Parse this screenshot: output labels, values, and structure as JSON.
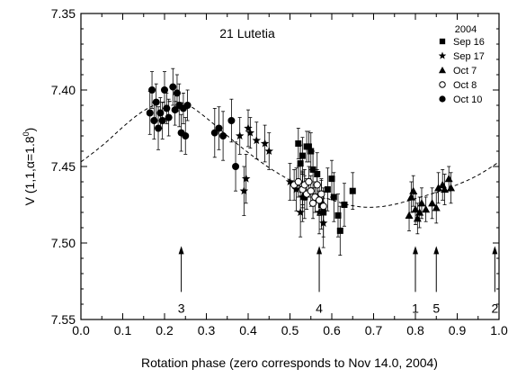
{
  "chart_data": {
    "type": "scatter",
    "title": "21 Lutetia",
    "xlabel": "Rotation phase (zero corresponds to Nov 14.0, 2004)",
    "ylabel_parts": {
      "main": "V (1,1,α=1.8",
      "sup": "0",
      "close": ")"
    },
    "xlim": [
      0.0,
      1.0
    ],
    "ylim": [
      7.35,
      7.55
    ],
    "y_inverted": true,
    "x_ticks": [
      "0.0",
      "0.1",
      "0.2",
      "0.3",
      "0.4",
      "0.5",
      "0.6",
      "0.7",
      "0.8",
      "0.9",
      "1.0"
    ],
    "x_tick_values": [
      0.0,
      0.1,
      0.2,
      0.3,
      0.4,
      0.5,
      0.6,
      0.7,
      0.8,
      0.9,
      1.0
    ],
    "y_ticks": [
      "7.35",
      "7.40",
      "7.45",
      "7.50",
      "7.55"
    ],
    "y_tick_values": [
      7.35,
      7.4,
      7.45,
      7.5,
      7.55
    ],
    "legend": {
      "title": "2004",
      "placement": "top-right",
      "entries": [
        {
          "label": "Sep 16",
          "marker": "square"
        },
        {
          "label": "Sep 17",
          "marker": "star"
        },
        {
          "label": "Oct  7",
          "marker": "triangle"
        },
        {
          "label": "Oct  8",
          "marker": "open-circle"
        },
        {
          "label": "Oct 10",
          "marker": "filled-circle"
        }
      ]
    },
    "fit_curve": [
      [
        0.0,
        7.447
      ],
      [
        0.05,
        7.437
      ],
      [
        0.1,
        7.424
      ],
      [
        0.15,
        7.413
      ],
      [
        0.2,
        7.407
      ],
      [
        0.25,
        7.408
      ],
      [
        0.3,
        7.418
      ],
      [
        0.35,
        7.43
      ],
      [
        0.4,
        7.441
      ],
      [
        0.45,
        7.451
      ],
      [
        0.5,
        7.459
      ],
      [
        0.55,
        7.467
      ],
      [
        0.6,
        7.472
      ],
      [
        0.65,
        7.476
      ],
      [
        0.7,
        7.477
      ],
      [
        0.75,
        7.475
      ],
      [
        0.8,
        7.471
      ],
      [
        0.85,
        7.467
      ],
      [
        0.9,
        7.462
      ],
      [
        0.95,
        7.456
      ],
      [
        1.0,
        7.447
      ]
    ],
    "series": [
      {
        "name": "Sep 16",
        "marker": "square",
        "points": [
          [
            0.52,
            7.435,
            0.01
          ],
          [
            0.525,
            7.448,
            0.012
          ],
          [
            0.53,
            7.465,
            0.012
          ],
          [
            0.535,
            7.47,
            0.014
          ],
          [
            0.54,
            7.437,
            0.01
          ],
          [
            0.55,
            7.44,
            0.012
          ],
          [
            0.555,
            7.452,
            0.012
          ],
          [
            0.565,
            7.455,
            0.014
          ],
          [
            0.575,
            7.475,
            0.016
          ],
          [
            0.58,
            7.48,
            0.016
          ],
          [
            0.59,
            7.465,
            0.014
          ],
          [
            0.6,
            7.458,
            0.012
          ],
          [
            0.605,
            7.47,
            0.016
          ],
          [
            0.615,
            7.482,
            0.014
          ],
          [
            0.62,
            7.492,
            0.016
          ],
          [
            0.63,
            7.475,
            0.014
          ],
          [
            0.65,
            7.466,
            0.012
          ],
          [
            0.53,
            7.443,
            0.012
          ],
          [
            0.545,
            7.437,
            0.01
          ]
        ]
      },
      {
        "name": "Sep 17",
        "marker": "star",
        "points": [
          [
            0.38,
            7.43,
            0.012
          ],
          [
            0.39,
            7.466,
            0.016
          ],
          [
            0.395,
            7.458,
            0.016
          ],
          [
            0.4,
            7.425,
            0.012
          ],
          [
            0.405,
            7.428,
            0.01
          ],
          [
            0.42,
            7.433,
            0.012
          ],
          [
            0.44,
            7.435,
            0.012
          ],
          [
            0.45,
            7.44,
            0.012
          ],
          [
            0.5,
            7.46,
            0.012
          ],
          [
            0.515,
            7.465,
            0.014
          ],
          [
            0.525,
            7.48,
            0.016
          ],
          [
            0.53,
            7.47,
            0.016
          ],
          [
            0.57,
            7.48,
            0.014
          ],
          [
            0.58,
            7.487,
            0.016
          ]
        ]
      },
      {
        "name": "Oct  7",
        "marker": "triangle",
        "points": [
          [
            0.785,
            7.482,
            0.01
          ],
          [
            0.79,
            7.47,
            0.01
          ],
          [
            0.795,
            7.466,
            0.01
          ],
          [
            0.8,
            7.478,
            0.01
          ],
          [
            0.805,
            7.484,
            0.01
          ],
          [
            0.81,
            7.48,
            0.01
          ],
          [
            0.815,
            7.474,
            0.01
          ],
          [
            0.825,
            7.478,
            0.008
          ],
          [
            0.84,
            7.474,
            0.01
          ],
          [
            0.85,
            7.477,
            0.01
          ],
          [
            0.855,
            7.464,
            0.01
          ],
          [
            0.865,
            7.462,
            0.01
          ],
          [
            0.87,
            7.465,
            0.01
          ],
          [
            0.88,
            7.458,
            0.008
          ],
          [
            0.885,
            7.464,
            0.01
          ]
        ]
      },
      {
        "name": "Oct  8",
        "marker": "open-circle",
        "points": [
          [
            0.51,
            7.462,
            0.01
          ],
          [
            0.52,
            7.46,
            0.01
          ],
          [
            0.53,
            7.465,
            0.01
          ],
          [
            0.535,
            7.462,
            0.01
          ],
          [
            0.54,
            7.468,
            0.01
          ],
          [
            0.545,
            7.46,
            0.01
          ],
          [
            0.55,
            7.466,
            0.01
          ],
          [
            0.555,
            7.474,
            0.01
          ],
          [
            0.56,
            7.47,
            0.01
          ],
          [
            0.565,
            7.462,
            0.01
          ],
          [
            0.57,
            7.472,
            0.01
          ],
          [
            0.575,
            7.468,
            0.01
          ],
          [
            0.58,
            7.476,
            0.01
          ]
        ]
      },
      {
        "name": "Oct 10",
        "marker": "filled-circle",
        "points": [
          [
            0.165,
            7.415,
            0.014
          ],
          [
            0.17,
            7.4,
            0.012
          ],
          [
            0.175,
            7.42,
            0.012
          ],
          [
            0.18,
            7.408,
            0.012
          ],
          [
            0.185,
            7.425,
            0.014
          ],
          [
            0.19,
            7.415,
            0.01
          ],
          [
            0.195,
            7.42,
            0.012
          ],
          [
            0.2,
            7.4,
            0.012
          ],
          [
            0.205,
            7.412,
            0.01
          ],
          [
            0.21,
            7.418,
            0.012
          ],
          [
            0.22,
            7.398,
            0.012
          ],
          [
            0.225,
            7.413,
            0.01
          ],
          [
            0.23,
            7.402,
            0.012
          ],
          [
            0.235,
            7.41,
            0.014
          ],
          [
            0.24,
            7.428,
            0.012
          ],
          [
            0.245,
            7.412,
            0.01
          ],
          [
            0.25,
            7.43,
            0.012
          ],
          [
            0.255,
            7.41,
            0.01
          ],
          [
            0.32,
            7.428,
            0.016
          ],
          [
            0.33,
            7.425,
            0.014
          ],
          [
            0.34,
            7.43,
            0.016
          ],
          [
            0.36,
            7.42,
            0.014
          ],
          [
            0.37,
            7.45,
            0.016
          ]
        ]
      }
    ],
    "arrows": [
      {
        "label": "3",
        "x": 0.24
      },
      {
        "label": "4",
        "x": 0.57
      },
      {
        "label": "1",
        "x": 0.8
      },
      {
        "label": "5",
        "x": 0.85
      },
      {
        "label": "2",
        "x": 0.99
      }
    ]
  }
}
